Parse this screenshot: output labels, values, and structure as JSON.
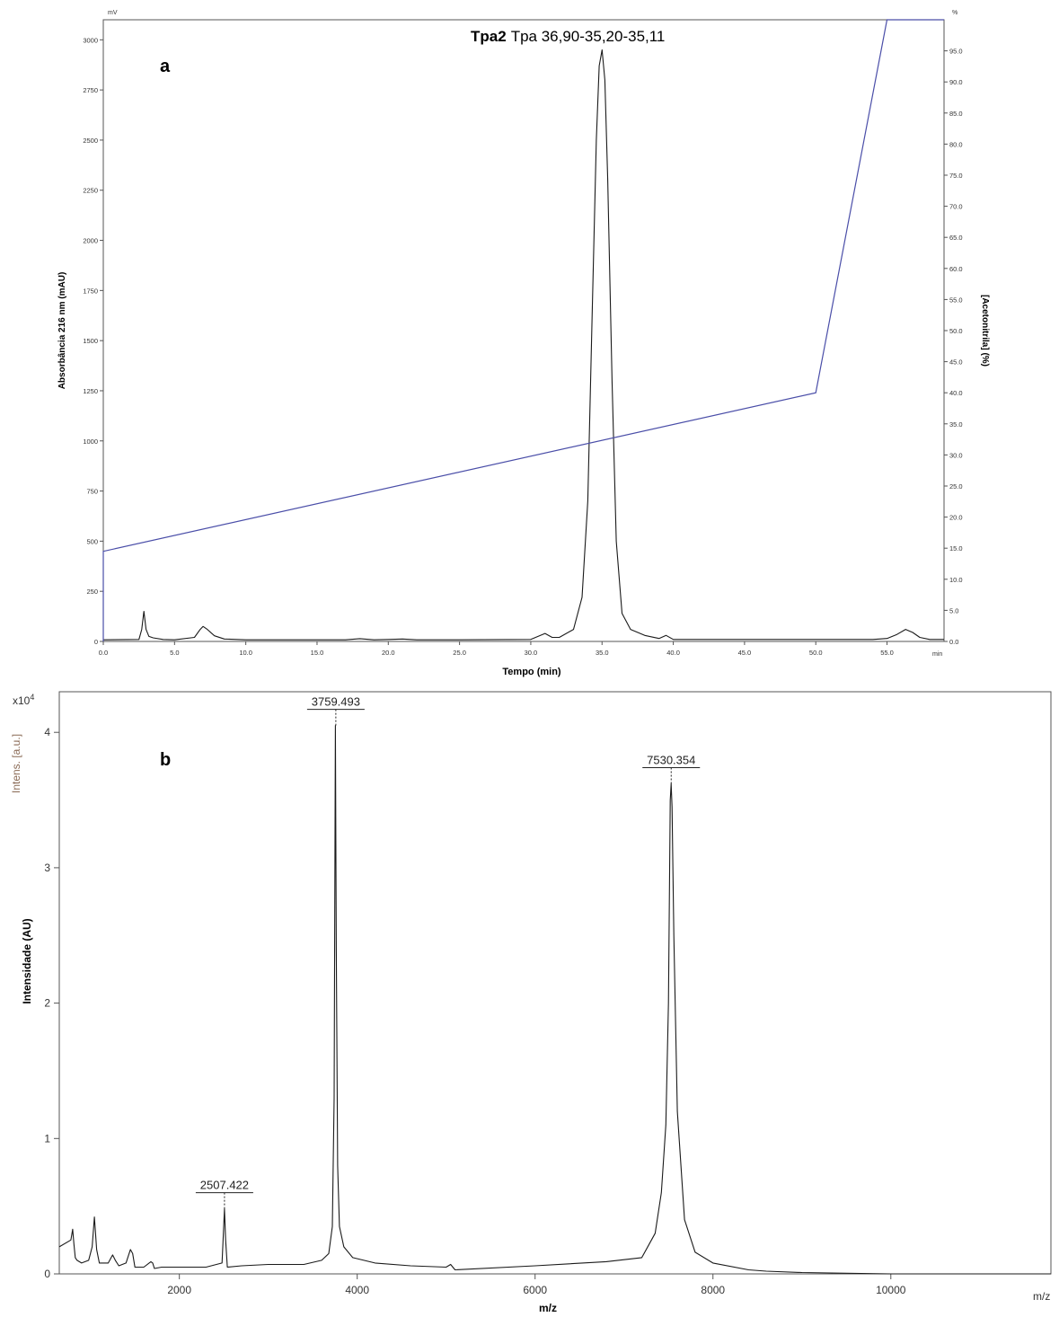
{
  "colors": {
    "trace": "#1a1a1a",
    "gradient": "#4a4ea8",
    "axis": "#555555",
    "tick_text_a": "#333333",
    "unit_b": "#8a6a55"
  },
  "chart_data": [
    {
      "panel_label": "a",
      "type": "line",
      "title_bold": "Tpa2",
      "title_rest": "Tpa 36,90-35,20-35,11",
      "xlabel": "Tempo (min)",
      "x_unit": "min",
      "ylabel": "Absorbância 216 nm (mAU)",
      "y_unit": "mV",
      "y2label": "[Acetonitrila] (%)",
      "y2_unit": "%",
      "xlim": [
        0,
        59
      ],
      "ylim": [
        0,
        3100
      ],
      "y2lim": [
        0,
        100
      ],
      "x_ticks": [
        "0.0",
        "5.0",
        "10.0",
        "15.0",
        "20.0",
        "25.0",
        "30.0",
        "35.0",
        "40.0",
        "45.0",
        "50.0",
        "55.0"
      ],
      "y_ticks": [
        "0",
        "250",
        "500",
        "750",
        "1000",
        "1250",
        "1500",
        "1750",
        "2000",
        "2250",
        "2500",
        "2750",
        "3000"
      ],
      "y2_ticks": [
        "0.0",
        "5.0",
        "10.0",
        "15.0",
        "20.0",
        "25.0",
        "30.0",
        "35.0",
        "40.0",
        "45.0",
        "50.0",
        "55.0",
        "60.0",
        "65.0",
        "70.0",
        "75.0",
        "80.0",
        "85.0",
        "90.0",
        "95.0"
      ],
      "series": [
        {
          "values_axis": "left",
          "x": [
            0,
            2.5,
            2.7,
            2.85,
            3.0,
            3.2,
            3.5,
            4.2,
            5,
            6.4,
            6.8,
            7.0,
            7.3,
            7.8,
            8.5,
            10,
            17,
            18,
            19,
            20,
            21,
            22,
            25,
            30,
            31,
            31.5,
            32,
            33,
            33.6,
            34.0,
            34.3,
            34.6,
            34.8,
            35.0,
            35.2,
            35.4,
            35.7,
            36.0,
            36.4,
            37.0,
            38,
            39,
            39.5,
            40,
            45,
            50,
            54,
            55,
            55.7,
            56.3,
            56.8,
            57.3,
            58,
            59
          ],
          "values": [
            8,
            10,
            60,
            150,
            60,
            25,
            18,
            10,
            8,
            20,
            60,
            75,
            60,
            28,
            12,
            8,
            8,
            14,
            8,
            10,
            12,
            8,
            8,
            10,
            40,
            20,
            20,
            60,
            220,
            700,
            1600,
            2500,
            2870,
            2950,
            2800,
            2300,
            1300,
            500,
            140,
            60,
            30,
            15,
            30,
            10,
            10,
            10,
            10,
            15,
            35,
            60,
            45,
            20,
            10,
            10
          ]
        },
        {
          "values_axis": "right",
          "x": [
            0,
            0,
            50,
            55,
            59
          ],
          "values": [
            0,
            14.5,
            40,
            100,
            100
          ]
        }
      ]
    },
    {
      "panel_label": "b",
      "type": "line",
      "xlabel": "m/z",
      "x_unit": "m/z",
      "ylabel": "Intensidade (AU)",
      "y_unit": "Intens. [a.u.]",
      "y_multiplier": "x10",
      "y_multiplier_exp": "4",
      "xlim": [
        650,
        11800
      ],
      "ylim": [
        0,
        4.3
      ],
      "x_ticks": [
        "2000",
        "4000",
        "6000",
        "8000",
        "10000"
      ],
      "y_ticks": [
        "0",
        "1",
        "2",
        "3",
        "4"
      ],
      "peak_labels": [
        {
          "x": 2507.422,
          "label": "2507.422",
          "value": 0.48
        },
        {
          "x": 3759.493,
          "label": "3759.493",
          "value": 4.05
        },
        {
          "x": 7530.354,
          "label": "7530.354",
          "value": 3.62
        }
      ],
      "series": [
        {
          "x": [
            650,
            780,
            800,
            815,
            830,
            850,
            900,
            980,
            1020,
            1045,
            1070,
            1100,
            1200,
            1250,
            1280,
            1320,
            1400,
            1450,
            1475,
            1500,
            1600,
            1680,
            1700,
            1720,
            1800,
            2000,
            2300,
            2480,
            2495,
            2507,
            2520,
            2540,
            2700,
            3000,
            3400,
            3600,
            3680,
            3720,
            3740,
            3755,
            3760,
            3765,
            3780,
            3800,
            3850,
            3950,
            4200,
            4600,
            5000,
            5050,
            5100,
            6000,
            6800,
            7200,
            7350,
            7420,
            7470,
            7500,
            7520,
            7530,
            7540,
            7560,
            7600,
            7680,
            7800,
            8000,
            8400,
            8600,
            9000,
            10000,
            11000,
            11800
          ],
          "values": [
            0.2,
            0.25,
            0.33,
            0.22,
            0.12,
            0.1,
            0.08,
            0.1,
            0.2,
            0.42,
            0.18,
            0.08,
            0.08,
            0.14,
            0.1,
            0.06,
            0.08,
            0.18,
            0.15,
            0.05,
            0.05,
            0.09,
            0.08,
            0.04,
            0.05,
            0.05,
            0.05,
            0.08,
            0.3,
            0.48,
            0.25,
            0.05,
            0.06,
            0.07,
            0.07,
            0.1,
            0.15,
            0.35,
            1.3,
            4.05,
            3.2,
            2.4,
            0.8,
            0.35,
            0.2,
            0.12,
            0.08,
            0.06,
            0.05,
            0.07,
            0.03,
            0.06,
            0.09,
            0.12,
            0.3,
            0.6,
            1.1,
            2.0,
            3.5,
            3.62,
            3.45,
            2.5,
            1.2,
            0.4,
            0.16,
            0.08,
            0.03,
            0.02,
            0.01,
            0.0,
            0.0,
            0.0
          ]
        }
      ]
    }
  ]
}
